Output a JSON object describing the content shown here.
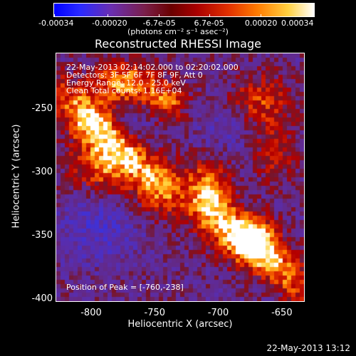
{
  "colorbar": {
    "ticks": [
      "-0.00034",
      "-0.00020",
      "-6.7e-05",
      "6.7e-05",
      "0.00020",
      "0.00034"
    ],
    "units": "(photons cm⁻² s⁻¹ asec⁻²)",
    "range": [
      -0.00034,
      0.00034
    ]
  },
  "annotations": {
    "time_range": "22-May-2013 02:14:02.000 to 02:20:02.000",
    "detectors": "Detectors: 3F 5F 6F 7F 8F 9F, Att 0",
    "energy": "Energy Range: 12.0 - 25.0 keV",
    "clean": "Clean     Total counts: 1.16E+04",
    "peak": "Position of Peak = [-760,-238]"
  },
  "footer": "22-May-2013 13:12",
  "chart_data": {
    "type": "heatmap",
    "title": "Reconstructed RHESSI Image",
    "xlabel": "Heliocentric X (arcsec)",
    "ylabel": "Heliocentric Y (arcsec)",
    "xlim": [
      -828,
      -632
    ],
    "ylim": [
      -402,
      -206
    ],
    "xticks": [
      "-800",
      "-750",
      "-700",
      "-650"
    ],
    "xtick_values": [
      -800,
      -750,
      -700,
      -650
    ],
    "yticks": [
      "-250",
      "-300",
      "-350",
      "-400"
    ],
    "ytick_values": [
      -250,
      -300,
      -350,
      -400
    ],
    "peak": [
      -760,
      -238
    ],
    "colors": {
      "negative": "#2a2aff",
      "zero": "#6a2e9a",
      "positive_mid": "#e23000",
      "positive_high": "#ffd040",
      "max": "#ffffff"
    }
  }
}
